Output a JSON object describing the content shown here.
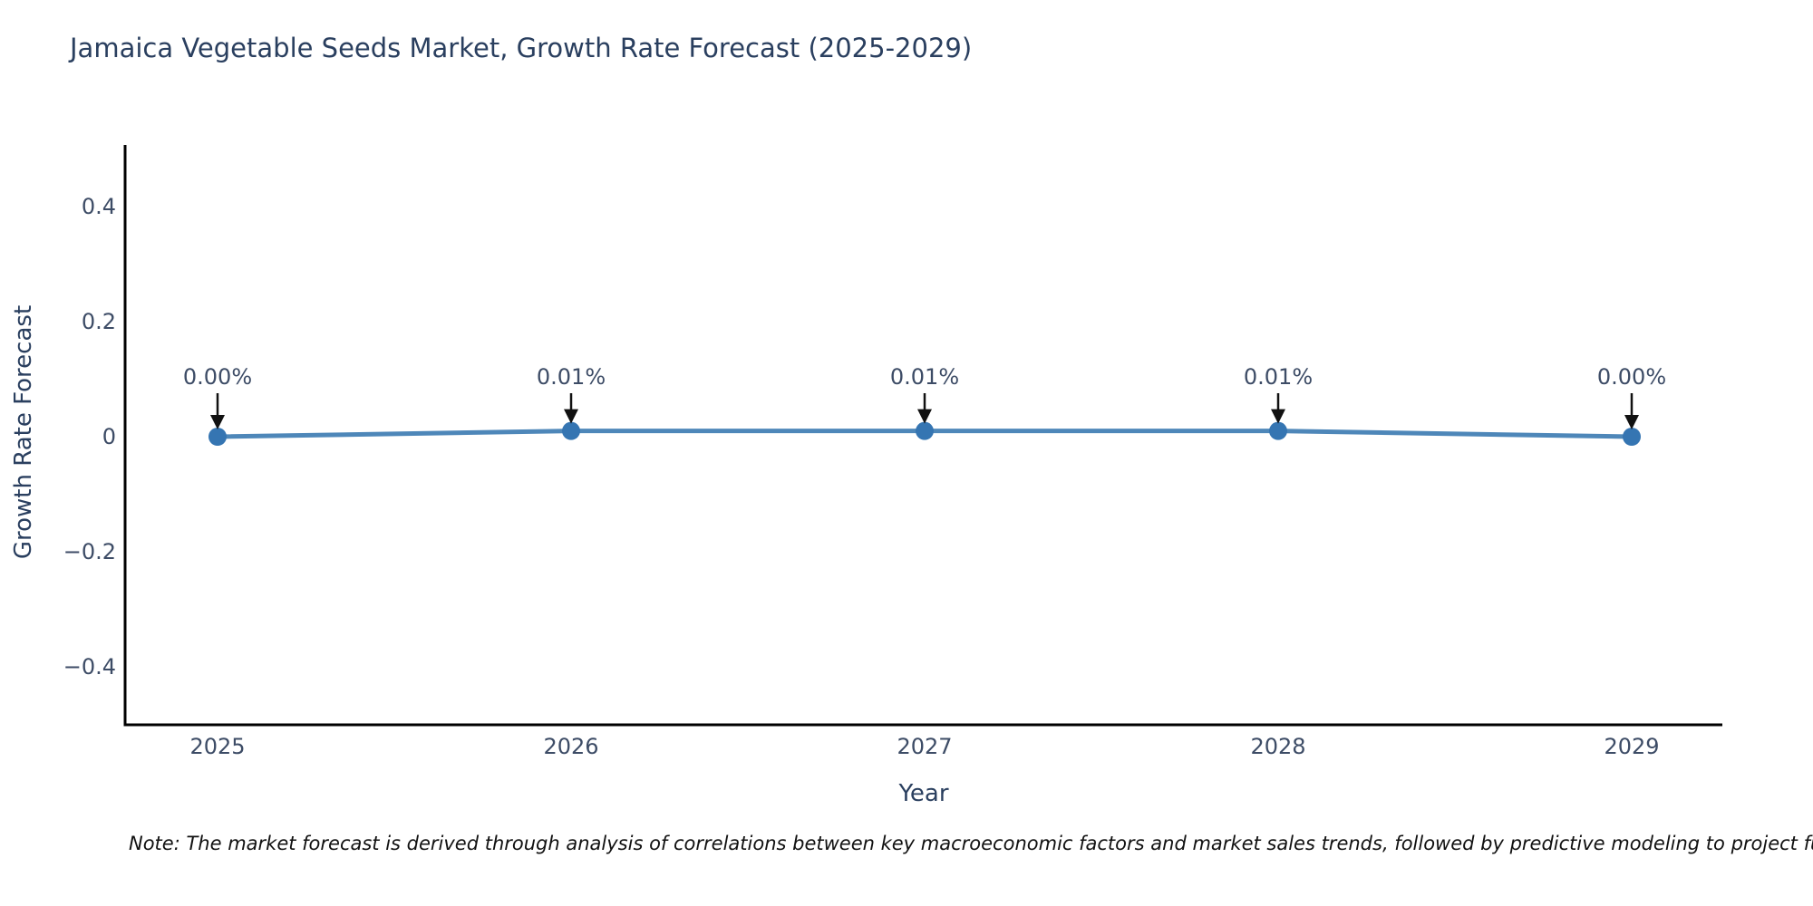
{
  "chart_data": {
    "type": "line",
    "title": "Jamaica Vegetable Seeds Market, Growth Rate Forecast (2025-2029)",
    "xlabel": "Year",
    "ylabel": "Growth Rate Forecast",
    "categories": [
      "2025",
      "2026",
      "2027",
      "2028",
      "2029"
    ],
    "series": [
      {
        "name": "Growth Rate Forecast",
        "values": [
          0.0,
          0.01,
          0.01,
          0.01,
          0.0
        ],
        "point_labels": [
          "0.00%",
          "0.01%",
          "0.01%",
          "0.01%",
          "0.00%"
        ]
      }
    ],
    "ylim": [
      -0.5,
      0.5
    ],
    "y_ticks": [
      0.4,
      0.2,
      0,
      -0.2,
      -0.4
    ],
    "y_tick_labels": [
      "0.4",
      "0.2",
      "0",
      "−0.2",
      "−0.4"
    ],
    "grid": false,
    "legend_position": "none",
    "line_color": "#4e87b9",
    "marker_color": "#3575b2",
    "axis_color": "#000000",
    "title_color": "#2a3f5f",
    "tick_color": "#3d4c66",
    "annotation_text_color": "#3d4c66",
    "annotation_arrow_color": "#111111"
  },
  "footnote": {
    "text": "Note: The market forecast is derived through analysis of correlations between key macroeconomic factors and market sales trends, followed by predictive modeling to project future sales."
  }
}
